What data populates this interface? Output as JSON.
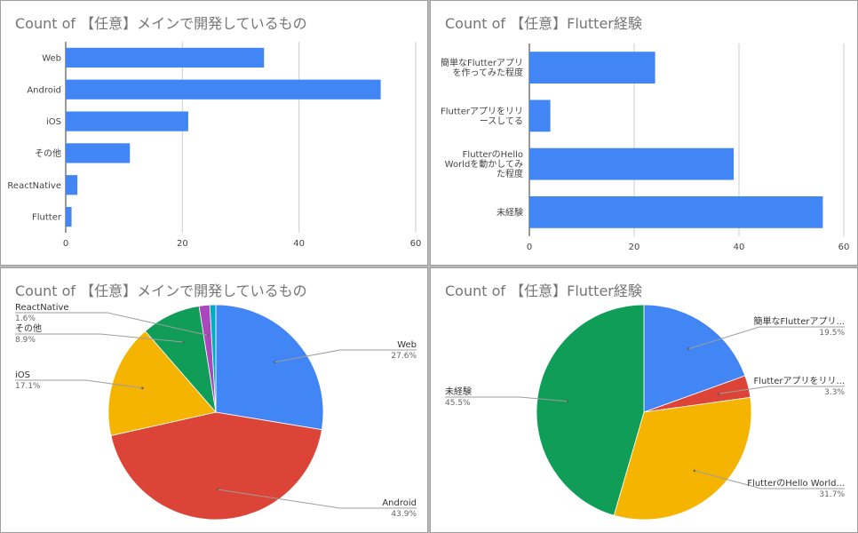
{
  "colors": {
    "bar": "#4285f4",
    "blue": "#4285f4",
    "red": "#db4437",
    "yellow": "#f4b400",
    "green": "#0f9d58",
    "purple": "#ab47bc",
    "cyan": "#00acc1"
  },
  "chart_data": [
    {
      "type": "bar",
      "title": "Count of 【任意】メインで開発しているもの",
      "categories": [
        "Web",
        "Android",
        "iOS",
        "その他",
        "ReactNative",
        "Flutter"
      ],
      "values": [
        34,
        54,
        21,
        11,
        2,
        1
      ],
      "xlim": [
        0,
        60
      ],
      "xticks": [
        "0",
        "20",
        "40",
        "60"
      ],
      "orientation": "horizontal",
      "grid": true
    },
    {
      "type": "bar",
      "title": "Count of 【任意】Flutter経験",
      "categories": [
        [
          "簡単なFlutterアプリ",
          "を作ってみた程度"
        ],
        [
          "Flutterアプリをリリ",
          "ースしてる"
        ],
        [
          "FlutterのHello",
          "Worldを動かしてみ",
          "た程度"
        ],
        [
          "未経験"
        ]
      ],
      "values": [
        24,
        4,
        39,
        56
      ],
      "xlim": [
        0,
        60
      ],
      "xticks": [
        "0",
        "20",
        "40",
        "60"
      ],
      "orientation": "horizontal",
      "grid": true
    },
    {
      "type": "pie",
      "title": "Count of 【任意】メインで開発しているもの",
      "slices": [
        {
          "label": "Web",
          "pct_label": "27.6%",
          "value": 27.6,
          "color": "#4285f4"
        },
        {
          "label": "Android",
          "pct_label": "43.9%",
          "value": 43.9,
          "color": "#db4437"
        },
        {
          "label": "iOS",
          "pct_label": "17.1%",
          "value": 17.1,
          "color": "#f4b400"
        },
        {
          "label": "その他",
          "pct_label": "8.9%",
          "value": 8.9,
          "color": "#0f9d58"
        },
        {
          "label": "ReactNative",
          "pct_label": "1.6%",
          "value": 1.6,
          "color": "#ab47bc"
        },
        {
          "label": "",
          "pct_label": "",
          "value": 0.9,
          "color": "#00acc1"
        }
      ]
    },
    {
      "type": "pie",
      "title": "Count of 【任意】Flutter経験",
      "slices": [
        {
          "label": "簡単なFlutterアプリ...",
          "pct_label": "19.5%",
          "value": 19.5,
          "color": "#4285f4"
        },
        {
          "label": "Flutterアプリをリリ...",
          "pct_label": "3.3%",
          "value": 3.3,
          "color": "#db4437"
        },
        {
          "label": "FlutterのHello World...",
          "pct_label": "31.7%",
          "value": 31.7,
          "color": "#f4b400"
        },
        {
          "label": "未経験",
          "pct_label": "45.5%",
          "value": 45.5,
          "color": "#0f9d58"
        }
      ]
    }
  ]
}
